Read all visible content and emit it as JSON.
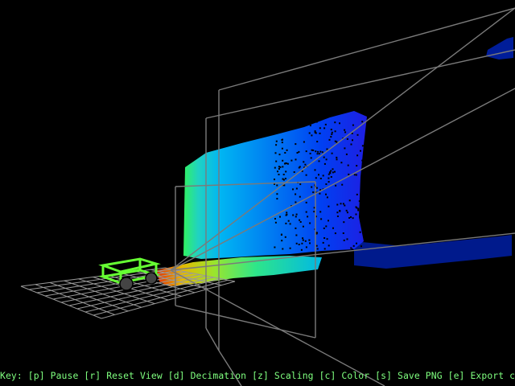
{
  "viewer": {
    "background": "#000000",
    "grid_color": "#9a9a9a",
    "frustum_color": "#7a7a7a",
    "robot_color": "#66ff33",
    "wheel_color": "#444444",
    "colormap": "jet",
    "cloud_near_color": "#ff3300",
    "cloud_far_color": "#0010ff"
  },
  "keybar": {
    "color": "#7fff7f",
    "text": "Key: [p] Pause [r] Reset View [d] Decimation [z] Scaling [c] Color [s] Save PNG [e] Export cloud"
  }
}
